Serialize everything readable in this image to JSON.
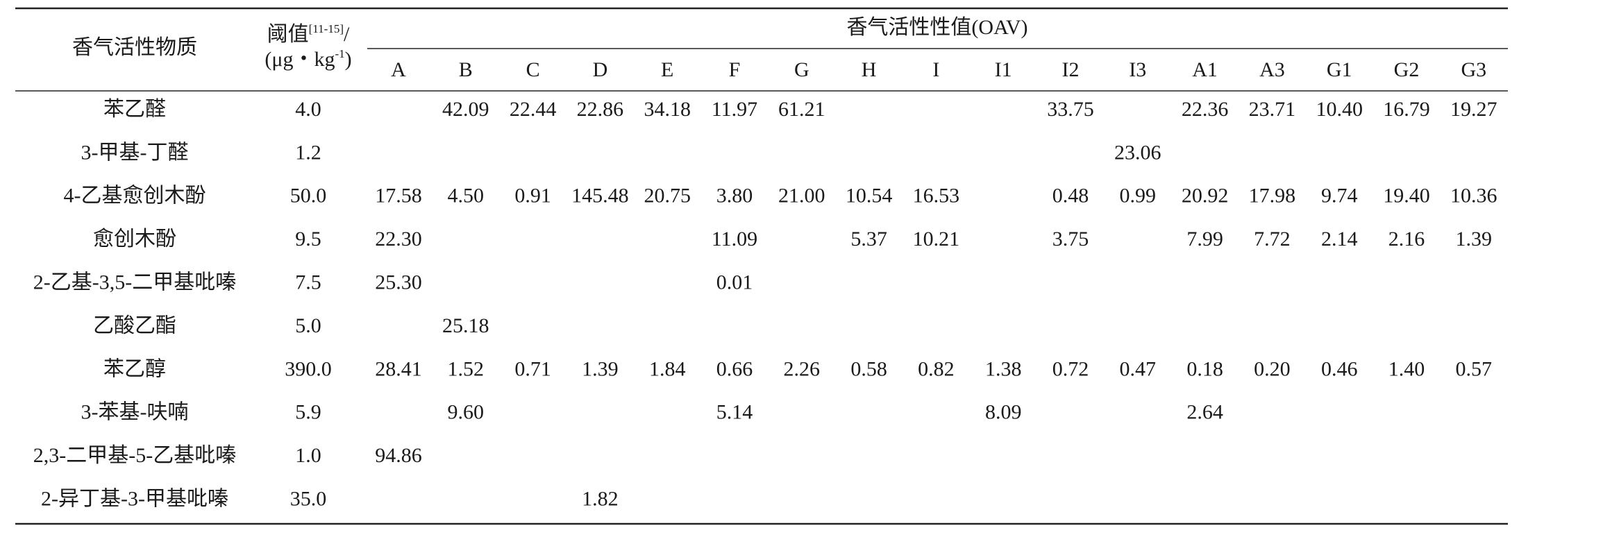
{
  "table": {
    "header": {
      "substance": "香气活性物质",
      "threshold": {
        "text": "阈值",
        "ref": "[11-15]",
        "slash": "/",
        "unit": "(μg・kg",
        "unit_sup": "-1",
        "unit_end": ")"
      },
      "oav": "香气活性性值(OAV)"
    },
    "columns": [
      "A",
      "B",
      "C",
      "D",
      "E",
      "F",
      "G",
      "H",
      "I",
      "I1",
      "I2",
      "I3",
      "A1",
      "A3",
      "G1",
      "G2",
      "G3"
    ],
    "rows": [
      {
        "name": "苯乙醛",
        "threshold": "4.0",
        "values": [
          null,
          "42.09",
          "22.44",
          "22.86",
          "34.18",
          "11.97",
          "61.21",
          null,
          null,
          null,
          "33.75",
          null,
          "22.36",
          "23.71",
          "10.40",
          "16.79",
          "19.27"
        ]
      },
      {
        "name": "3-甲基-丁醛",
        "threshold": "1.2",
        "values": [
          null,
          null,
          null,
          null,
          null,
          null,
          null,
          null,
          null,
          null,
          null,
          "23.06",
          null,
          null,
          null,
          null,
          null
        ]
      },
      {
        "name": "4-乙基愈创木酚",
        "threshold": "50.0",
        "values": [
          "17.58",
          "4.50",
          "0.91",
          "145.48",
          "20.75",
          "3.80",
          "21.00",
          "10.54",
          "16.53",
          null,
          "0.48",
          "0.99",
          "20.92",
          "17.98",
          "9.74",
          "19.40",
          "10.36"
        ]
      },
      {
        "name": "愈创木酚",
        "threshold": "9.5",
        "values": [
          "22.30",
          null,
          null,
          null,
          null,
          "11.09",
          null,
          "5.37",
          "10.21",
          null,
          "3.75",
          null,
          "7.99",
          "7.72",
          "2.14",
          "2.16",
          "1.39"
        ]
      },
      {
        "name": "2-乙基-3,5-二甲基吡嗪",
        "threshold": "7.5",
        "values": [
          "25.30",
          null,
          null,
          null,
          null,
          "0.01",
          null,
          null,
          null,
          null,
          null,
          null,
          null,
          null,
          null,
          null,
          null
        ]
      },
      {
        "name": "乙酸乙酯",
        "threshold": "5.0",
        "values": [
          null,
          "25.18",
          null,
          null,
          null,
          null,
          null,
          null,
          null,
          null,
          null,
          null,
          null,
          null,
          null,
          null,
          null
        ]
      },
      {
        "name": "苯乙醇",
        "threshold": "390.0",
        "values": [
          "28.41",
          "1.52",
          "0.71",
          "1.39",
          "1.84",
          "0.66",
          "2.26",
          "0.58",
          "0.82",
          "1.38",
          "0.72",
          "0.47",
          "0.18",
          "0.20",
          "0.46",
          "1.40",
          "0.57"
        ]
      },
      {
        "name": "3-苯基-呋喃",
        "threshold": "5.9",
        "values": [
          null,
          "9.60",
          null,
          null,
          null,
          "5.14",
          null,
          null,
          null,
          "8.09",
          null,
          null,
          "2.64",
          null,
          null,
          null,
          null
        ]
      },
      {
        "name": "2,3-二甲基-5-乙基吡嗪",
        "threshold": "1.0",
        "values": [
          "94.86",
          null,
          null,
          null,
          null,
          null,
          null,
          null,
          null,
          null,
          null,
          null,
          null,
          null,
          null,
          null,
          null
        ]
      },
      {
        "name": "2-异丁基-3-甲基吡嗪",
        "threshold": "35.0",
        "values": [
          null,
          null,
          null,
          "1.82",
          null,
          null,
          null,
          null,
          null,
          null,
          null,
          null,
          null,
          null,
          null,
          null,
          null
        ]
      }
    ]
  }
}
